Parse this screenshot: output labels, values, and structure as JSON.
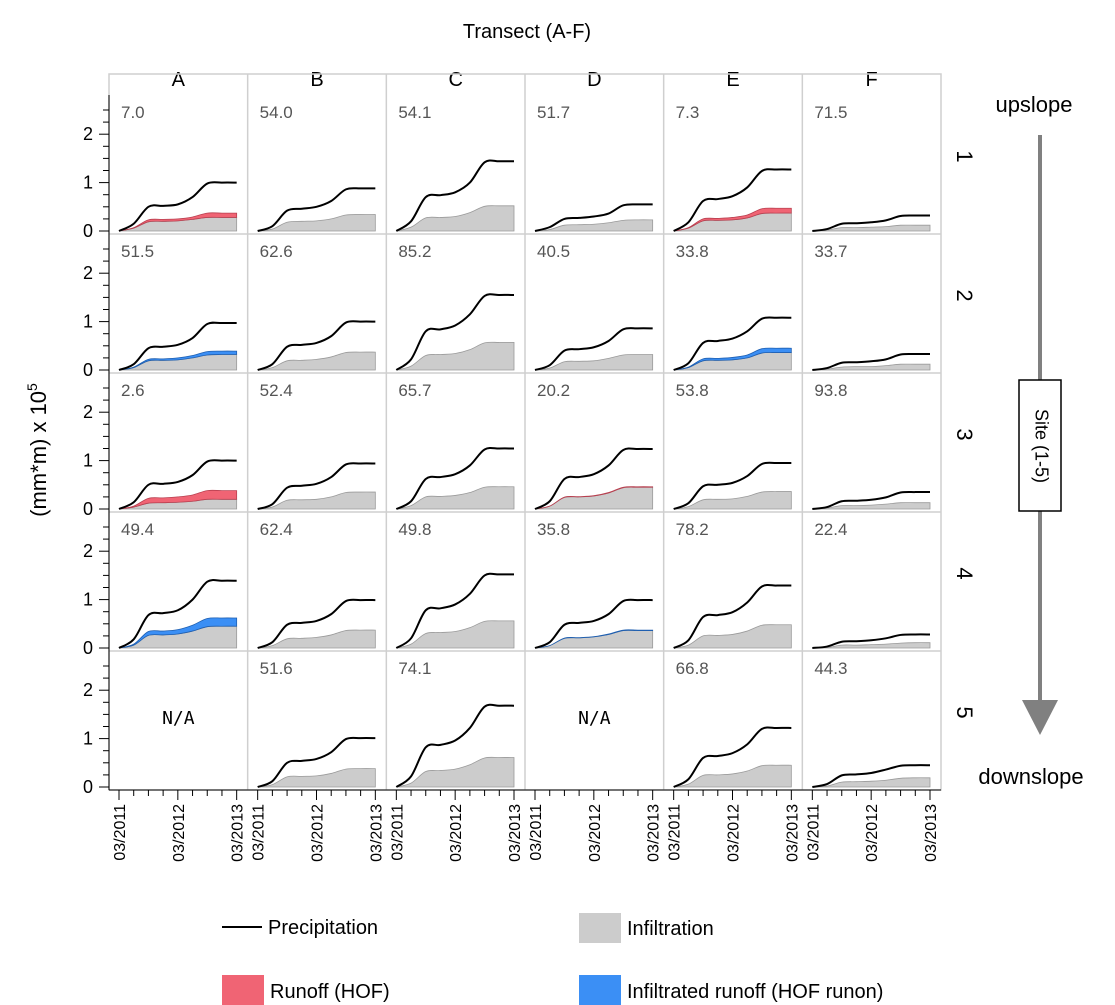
{
  "chart_data": {
    "type": "area",
    "title": "Transect (A-F)",
    "ylabel": "(mm*m) x 10",
    "ylabel_exponent": "5",
    "ylim": [
      0,
      2.5
    ],
    "yticks": [
      0,
      1,
      2
    ],
    "xtick_labels": [
      "03/2011",
      "03/2012",
      "03/2013"
    ],
    "columns": [
      "A",
      "B",
      "C",
      "D",
      "E",
      "F"
    ],
    "rows": [
      "1",
      "2",
      "3",
      "4",
      "5"
    ],
    "site_label": "Site (1-5)",
    "upslope_label": "upslope",
    "downslope_label": "downslope",
    "na_label": "N/A",
    "legend": {
      "precipitation": "Precipitation",
      "infiltration": "Infiltration",
      "runoff": "Runoff (HOF)",
      "runon": "Infiltrated runoff (HOF runon)"
    },
    "colors": {
      "precipitation": "#000000",
      "infiltration": "#cccccc",
      "runoff": "#f06474",
      "runon": "#3b8ff5"
    },
    "x": [
      "03/2011",
      "06/2011",
      "09/2011",
      "12/2011",
      "03/2012",
      "06/2012",
      "09/2012",
      "12/2012",
      "03/2013"
    ],
    "panels": [
      {
        "row": "1",
        "col": "A",
        "label": "7.0",
        "precip": [
          0,
          0.15,
          0.5,
          0.52,
          0.55,
          0.7,
          0.98,
          1.0,
          1.0
        ],
        "infil": [
          0,
          0.06,
          0.19,
          0.2,
          0.21,
          0.24,
          0.28,
          0.28,
          0.28
        ],
        "extra_type": "runoff",
        "extra": [
          0,
          0.01,
          0.04,
          0.04,
          0.04,
          0.05,
          0.09,
          0.09,
          0.09
        ]
      },
      {
        "row": "1",
        "col": "B",
        "label": "54.0",
        "precip": [
          0,
          0.1,
          0.42,
          0.46,
          0.5,
          0.62,
          0.86,
          0.88,
          0.88
        ],
        "infil": [
          0,
          0.04,
          0.18,
          0.2,
          0.21,
          0.25,
          0.33,
          0.34,
          0.34
        ],
        "extra_type": "none",
        "extra": []
      },
      {
        "row": "1",
        "col": "C",
        "label": "54.1",
        "precip": [
          0,
          0.2,
          0.7,
          0.74,
          0.8,
          1.0,
          1.42,
          1.44,
          1.44
        ],
        "infil": [
          0,
          0.08,
          0.27,
          0.28,
          0.3,
          0.38,
          0.51,
          0.52,
          0.52
        ],
        "extra_type": "none",
        "extra": []
      },
      {
        "row": "1",
        "col": "D",
        "label": "51.7",
        "precip": [
          0,
          0.08,
          0.25,
          0.27,
          0.3,
          0.36,
          0.53,
          0.55,
          0.55
        ],
        "infil": [
          0,
          0.03,
          0.12,
          0.13,
          0.14,
          0.17,
          0.22,
          0.23,
          0.23
        ],
        "extra_type": "none",
        "extra": []
      },
      {
        "row": "1",
        "col": "E",
        "label": "7.3",
        "precip": [
          0,
          0.18,
          0.62,
          0.66,
          0.72,
          0.9,
          1.24,
          1.27,
          1.27
        ],
        "infil": [
          0,
          0.06,
          0.21,
          0.22,
          0.23,
          0.27,
          0.36,
          0.37,
          0.37
        ],
        "extra_type": "runoff",
        "extra": [
          0,
          0.01,
          0.04,
          0.04,
          0.05,
          0.06,
          0.1,
          0.1,
          0.1
        ]
      },
      {
        "row": "1",
        "col": "F",
        "label": "71.5",
        "precip": [
          0,
          0.04,
          0.15,
          0.16,
          0.18,
          0.22,
          0.31,
          0.32,
          0.32
        ],
        "infil": [
          0,
          0.02,
          0.07,
          0.07,
          0.08,
          0.09,
          0.12,
          0.12,
          0.12
        ],
        "extra_type": "none",
        "extra": []
      },
      {
        "row": "2",
        "col": "A",
        "label": "51.5",
        "precip": [
          0,
          0.12,
          0.45,
          0.48,
          0.52,
          0.66,
          0.95,
          0.97,
          0.97
        ],
        "infil": [
          0,
          0.05,
          0.19,
          0.2,
          0.21,
          0.25,
          0.31,
          0.32,
          0.32
        ],
        "extra_type": "runon",
        "extra": [
          0,
          0.01,
          0.03,
          0.03,
          0.04,
          0.05,
          0.07,
          0.07,
          0.07
        ]
      },
      {
        "row": "2",
        "col": "B",
        "label": "62.6",
        "precip": [
          0,
          0.12,
          0.48,
          0.52,
          0.56,
          0.7,
          0.98,
          1.0,
          1.0
        ],
        "infil": [
          0,
          0.05,
          0.19,
          0.2,
          0.22,
          0.27,
          0.36,
          0.37,
          0.37
        ],
        "extra_type": "none",
        "extra": []
      },
      {
        "row": "2",
        "col": "C",
        "label": "85.2",
        "precip": [
          0,
          0.22,
          0.8,
          0.84,
          0.92,
          1.15,
          1.53,
          1.55,
          1.55
        ],
        "infil": [
          0,
          0.08,
          0.3,
          0.32,
          0.34,
          0.42,
          0.56,
          0.57,
          0.57
        ],
        "extra_type": "none",
        "extra": []
      },
      {
        "row": "2",
        "col": "D",
        "label": "40.5",
        "precip": [
          0,
          0.1,
          0.4,
          0.43,
          0.47,
          0.6,
          0.84,
          0.86,
          0.86
        ],
        "infil": [
          0,
          0.04,
          0.17,
          0.18,
          0.19,
          0.24,
          0.31,
          0.32,
          0.32
        ],
        "extra_type": "none",
        "extra": []
      },
      {
        "row": "2",
        "col": "E",
        "label": "33.8",
        "precip": [
          0,
          0.14,
          0.56,
          0.6,
          0.65,
          0.8,
          1.06,
          1.08,
          1.08
        ],
        "infil": [
          0,
          0.05,
          0.19,
          0.2,
          0.21,
          0.25,
          0.35,
          0.36,
          0.36
        ],
        "extra_type": "runon",
        "extra": [
          0,
          0.01,
          0.04,
          0.04,
          0.05,
          0.06,
          0.09,
          0.09,
          0.09
        ]
      },
      {
        "row": "2",
        "col": "F",
        "label": "33.7",
        "precip": [
          0,
          0.04,
          0.15,
          0.16,
          0.18,
          0.22,
          0.32,
          0.33,
          0.33
        ],
        "infil": [
          0,
          0.02,
          0.06,
          0.07,
          0.07,
          0.09,
          0.12,
          0.12,
          0.12
        ],
        "extra_type": "none",
        "extra": []
      },
      {
        "row": "3",
        "col": "A",
        "label": "2.6",
        "precip": [
          0,
          0.14,
          0.5,
          0.52,
          0.56,
          0.7,
          0.98,
          1.0,
          1.0
        ],
        "infil": [
          0,
          0.04,
          0.12,
          0.13,
          0.14,
          0.16,
          0.2,
          0.2,
          0.2
        ],
        "extra_type": "runoff",
        "extra": [
          0,
          0.02,
          0.1,
          0.1,
          0.11,
          0.13,
          0.18,
          0.18,
          0.18
        ]
      },
      {
        "row": "3",
        "col": "B",
        "label": "52.4",
        "precip": [
          0,
          0.1,
          0.44,
          0.48,
          0.52,
          0.66,
          0.92,
          0.94,
          0.94
        ],
        "infil": [
          0,
          0.04,
          0.18,
          0.19,
          0.2,
          0.25,
          0.34,
          0.35,
          0.35
        ],
        "extra_type": "none",
        "extra": []
      },
      {
        "row": "3",
        "col": "C",
        "label": "65.7",
        "precip": [
          0,
          0.16,
          0.62,
          0.66,
          0.72,
          0.9,
          1.23,
          1.25,
          1.25
        ],
        "infil": [
          0,
          0.07,
          0.25,
          0.26,
          0.28,
          0.34,
          0.45,
          0.46,
          0.46
        ],
        "extra_type": "none",
        "extra": []
      },
      {
        "row": "3",
        "col": "D",
        "label": "20.2",
        "precip": [
          0,
          0.16,
          0.62,
          0.66,
          0.72,
          0.9,
          1.22,
          1.24,
          1.24
        ],
        "infil": [
          0,
          0.06,
          0.24,
          0.25,
          0.27,
          0.33,
          0.44,
          0.45,
          0.45
        ],
        "extra_type": "runoff",
        "extra": [
          0,
          0,
          0.005,
          0.005,
          0.005,
          0.01,
          0.01,
          0.01,
          0.01
        ]
      },
      {
        "row": "3",
        "col": "E",
        "label": "53.8",
        "precip": [
          0,
          0.12,
          0.47,
          0.5,
          0.54,
          0.68,
          0.93,
          0.95,
          0.95
        ],
        "infil": [
          0,
          0.05,
          0.19,
          0.2,
          0.21,
          0.26,
          0.35,
          0.36,
          0.36
        ],
        "extra_type": "none",
        "extra": []
      },
      {
        "row": "3",
        "col": "F",
        "label": "93.8",
        "precip": [
          0,
          0.04,
          0.16,
          0.17,
          0.19,
          0.24,
          0.34,
          0.35,
          0.35
        ],
        "infil": [
          0,
          0.02,
          0.07,
          0.07,
          0.08,
          0.1,
          0.13,
          0.13,
          0.13
        ],
        "extra_type": "none",
        "extra": []
      },
      {
        "row": "4",
        "col": "A",
        "label": "49.4",
        "precip": [
          0,
          0.18,
          0.68,
          0.72,
          0.78,
          1.0,
          1.37,
          1.39,
          1.39
        ],
        "infil": [
          0,
          0.06,
          0.26,
          0.27,
          0.29,
          0.35,
          0.44,
          0.45,
          0.45
        ],
        "extra_type": "runon",
        "extra": [
          0,
          0.02,
          0.08,
          0.08,
          0.09,
          0.12,
          0.17,
          0.17,
          0.17
        ]
      },
      {
        "row": "4",
        "col": "B",
        "label": "62.4",
        "precip": [
          0,
          0.12,
          0.48,
          0.52,
          0.56,
          0.7,
          0.97,
          0.99,
          0.99
        ],
        "infil": [
          0,
          0.05,
          0.19,
          0.2,
          0.22,
          0.27,
          0.36,
          0.37,
          0.37
        ],
        "extra_type": "none",
        "extra": []
      },
      {
        "row": "4",
        "col": "C",
        "label": "49.8",
        "precip": [
          0,
          0.2,
          0.78,
          0.82,
          0.9,
          1.12,
          1.5,
          1.52,
          1.52
        ],
        "infil": [
          0,
          0.08,
          0.3,
          0.32,
          0.34,
          0.42,
          0.55,
          0.56,
          0.56
        ],
        "extra_type": "none",
        "extra": []
      },
      {
        "row": "4",
        "col": "D",
        "label": "35.8",
        "precip": [
          0,
          0.12,
          0.48,
          0.52,
          0.56,
          0.7,
          0.97,
          0.99,
          0.99
        ],
        "infil": [
          0,
          0.05,
          0.2,
          0.21,
          0.23,
          0.28,
          0.36,
          0.36,
          0.36
        ],
        "extra_type": "runon",
        "extra": [
          0,
          0,
          0.005,
          0.005,
          0.005,
          0.008,
          0.01,
          0.01,
          0.01
        ]
      },
      {
        "row": "4",
        "col": "E",
        "label": "78.2",
        "precip": [
          0,
          0.16,
          0.64,
          0.68,
          0.74,
          0.94,
          1.27,
          1.29,
          1.29
        ],
        "infil": [
          0,
          0.06,
          0.25,
          0.26,
          0.28,
          0.35,
          0.47,
          0.48,
          0.48
        ],
        "extra_type": "none",
        "extra": []
      },
      {
        "row": "4",
        "col": "F",
        "label": "22.4",
        "precip": [
          0,
          0.03,
          0.13,
          0.14,
          0.16,
          0.2,
          0.27,
          0.28,
          0.28
        ],
        "infil": [
          0,
          0.01,
          0.06,
          0.06,
          0.07,
          0.08,
          0.1,
          0.11,
          0.11
        ],
        "extra_type": "none",
        "extra": []
      },
      {
        "row": "5",
        "col": "A",
        "label": "",
        "na": true,
        "precip": [],
        "infil": [],
        "extra_type": "none",
        "extra": []
      },
      {
        "row": "5",
        "col": "B",
        "label": "51.6",
        "precip": [
          0,
          0.12,
          0.5,
          0.54,
          0.58,
          0.72,
          0.99,
          1.01,
          1.01
        ],
        "infil": [
          0,
          0.05,
          0.21,
          0.22,
          0.23,
          0.28,
          0.37,
          0.38,
          0.38
        ],
        "extra_type": "none",
        "extra": []
      },
      {
        "row": "5",
        "col": "C",
        "label": "74.1",
        "precip": [
          0,
          0.22,
          0.82,
          0.87,
          0.96,
          1.22,
          1.66,
          1.68,
          1.68
        ],
        "infil": [
          0,
          0.08,
          0.32,
          0.34,
          0.37,
          0.46,
          0.6,
          0.61,
          0.61
        ],
        "extra_type": "none",
        "extra": []
      },
      {
        "row": "5",
        "col": "D",
        "label": "",
        "na": true,
        "precip": [],
        "infil": [],
        "extra_type": "none",
        "extra": []
      },
      {
        "row": "5",
        "col": "E",
        "label": "66.8",
        "precip": [
          0,
          0.16,
          0.6,
          0.64,
          0.7,
          0.88,
          1.2,
          1.22,
          1.22
        ],
        "infil": [
          0,
          0.06,
          0.24,
          0.25,
          0.27,
          0.33,
          0.44,
          0.45,
          0.45
        ],
        "extra_type": "none",
        "extra": []
      },
      {
        "row": "5",
        "col": "F",
        "label": "44.3",
        "precip": [
          0,
          0.06,
          0.24,
          0.26,
          0.29,
          0.36,
          0.44,
          0.45,
          0.45
        ],
        "infil": [
          0,
          0.02,
          0.1,
          0.11,
          0.12,
          0.14,
          0.18,
          0.19,
          0.19
        ],
        "extra_type": "none",
        "extra": []
      }
    ]
  }
}
